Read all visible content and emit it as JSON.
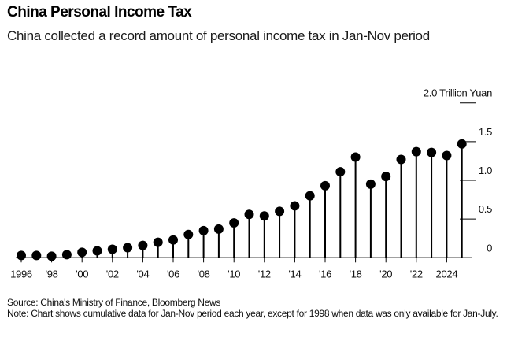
{
  "header": {
    "title": "China Personal Income Tax",
    "subtitle": "China collected a record amount of personal income tax in Jan-Nov period"
  },
  "footer": {
    "source": "Source: China's Ministry of Finance, Bloomberg News",
    "note": "Note: Chart shows cumulative data for Jan-Nov period each year, except for 1998 when data was only available for Jan-July."
  },
  "colors": {
    "marks": "#000000",
    "axis": "#000000",
    "gridline": "#000000"
  },
  "chart_data": {
    "type": "lollipop",
    "title": "China Personal Income Tax",
    "subtitle": "China collected a record amount of personal income tax in Jan-Nov period",
    "xlabel": "",
    "ylabel": "Trillion Yuan",
    "unit_label": "Trillion Yuan",
    "ylim": [
      0,
      2.0
    ],
    "yticks": [
      0,
      0.5,
      1.0,
      1.5,
      2.0
    ],
    "ytick_labels": [
      "0",
      "0.5",
      "1.0",
      "1.5",
      "2.0"
    ],
    "y_axis_position": "right",
    "grid": false,
    "x": [
      1996,
      1997,
      1998,
      1999,
      2000,
      2001,
      2002,
      2003,
      2004,
      2005,
      2006,
      2007,
      2008,
      2009,
      2010,
      2011,
      2012,
      2013,
      2014,
      2015,
      2016,
      2017,
      2018,
      2019,
      2020,
      2021,
      2022,
      2023,
      2024,
      2025
    ],
    "values": [
      0.03,
      0.03,
      0.02,
      0.04,
      0.07,
      0.09,
      0.11,
      0.13,
      0.16,
      0.2,
      0.23,
      0.3,
      0.35,
      0.37,
      0.45,
      0.56,
      0.54,
      0.6,
      0.67,
      0.8,
      0.93,
      1.11,
      1.3,
      0.95,
      1.05,
      1.27,
      1.37,
      1.36,
      1.32,
      1.47
    ],
    "xticks": [
      1996,
      1998,
      2000,
      2002,
      2004,
      2006,
      2008,
      2010,
      2012,
      2014,
      2016,
      2018,
      2020,
      2022,
      2024
    ],
    "xtick_labels": [
      "1996",
      "'98",
      "'00",
      "'02",
      "'04",
      "'06",
      "'08",
      "'10",
      "'12",
      "'14",
      "'16",
      "'18",
      "'20",
      "'22",
      "2024"
    ],
    "legend": "none"
  }
}
